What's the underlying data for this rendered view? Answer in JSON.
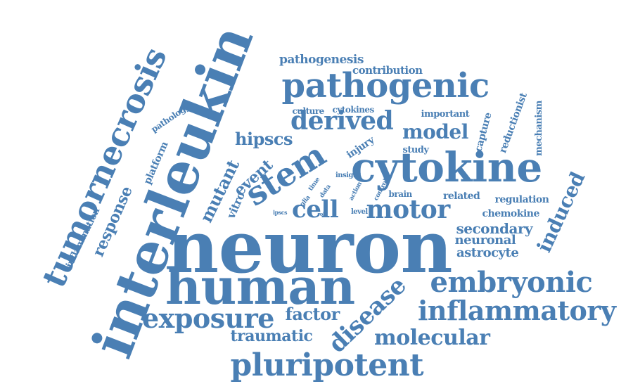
{
  "color": "#4a7fb4",
  "words": [
    {
      "id": "word-neuron",
      "text": "neuron"
    },
    {
      "id": "word-interleukin",
      "text": "interleukin"
    },
    {
      "id": "word-human",
      "text": "human"
    },
    {
      "id": "word-cytokine",
      "text": "cytokine"
    },
    {
      "id": "word-pathogenic",
      "text": "pathogenic"
    },
    {
      "id": "word-tumornecrosis",
      "text": "tumornecrosis"
    },
    {
      "id": "word-pluripotent",
      "text": "pluripotent"
    },
    {
      "id": "word-embryonic",
      "text": "embryonic"
    },
    {
      "id": "word-inflammatory",
      "text": "inflammatory"
    },
    {
      "id": "word-exposure",
      "text": "exposure"
    },
    {
      "id": "word-stem",
      "text": "stem"
    },
    {
      "id": "word-cell",
      "text": "cell"
    },
    {
      "id": "word-motor",
      "text": "motor"
    },
    {
      "id": "word-derived",
      "text": "derived"
    },
    {
      "id": "word-disease",
      "text": "disease"
    },
    {
      "id": "word-molecular",
      "text": "molecular"
    },
    {
      "id": "word-model",
      "text": "model"
    },
    {
      "id": "word-induced",
      "text": "induced"
    },
    {
      "id": "word-factor",
      "text": "factor"
    },
    {
      "id": "word-traumatic",
      "text": "traumatic"
    },
    {
      "id": "word-hipscs",
      "text": "hipscs"
    },
    {
      "id": "word-mutant",
      "text": "mutant"
    },
    {
      "id": "word-event",
      "text": "event"
    },
    {
      "id": "word-secondary",
      "text": "secondary"
    },
    {
      "id": "word-response",
      "text": "response"
    },
    {
      "id": "word-neuronal",
      "text": "neuronal"
    },
    {
      "id": "word-astrocyte",
      "text": "astrocyte"
    },
    {
      "id": "word-pathogenesis",
      "text": "pathogenesis"
    },
    {
      "id": "word-contribution",
      "text": "contribution"
    },
    {
      "id": "word-vitro",
      "text": "vitro"
    },
    {
      "id": "word-inflammation",
      "text": "inflammation"
    },
    {
      "id": "word-platform",
      "text": "platform"
    },
    {
      "id": "word-reductionist",
      "text": "reductionist"
    },
    {
      "id": "word-mechanism",
      "text": "mechanism"
    },
    {
      "id": "word-capture",
      "text": "capture"
    },
    {
      "id": "word-chemokine",
      "text": "chemokine"
    },
    {
      "id": "word-regulation",
      "text": "regulation"
    },
    {
      "id": "word-related",
      "text": "related"
    },
    {
      "id": "word-brain",
      "text": "brain"
    },
    {
      "id": "word-study",
      "text": "study"
    },
    {
      "id": "word-injury",
      "text": "injury"
    },
    {
      "id": "word-important",
      "text": "important"
    },
    {
      "id": "word-culture",
      "text": "culture"
    },
    {
      "id": "word-cytokines",
      "text": "cytokines"
    },
    {
      "id": "word-pathology",
      "text": "pathology"
    },
    {
      "id": "word-insight",
      "text": "insight"
    },
    {
      "id": "word-time",
      "text": "time"
    },
    {
      "id": "word-data",
      "text": "data"
    },
    {
      "id": "word-action",
      "text": "action"
    },
    {
      "id": "word-control",
      "text": "control"
    },
    {
      "id": "word-glia",
      "text": "glia"
    },
    {
      "id": "word-level",
      "text": "level"
    },
    {
      "id": "word-ipscs",
      "text": "ipscs"
    },
    {
      "id": "word-role",
      "text": "role"
    }
  ]
}
